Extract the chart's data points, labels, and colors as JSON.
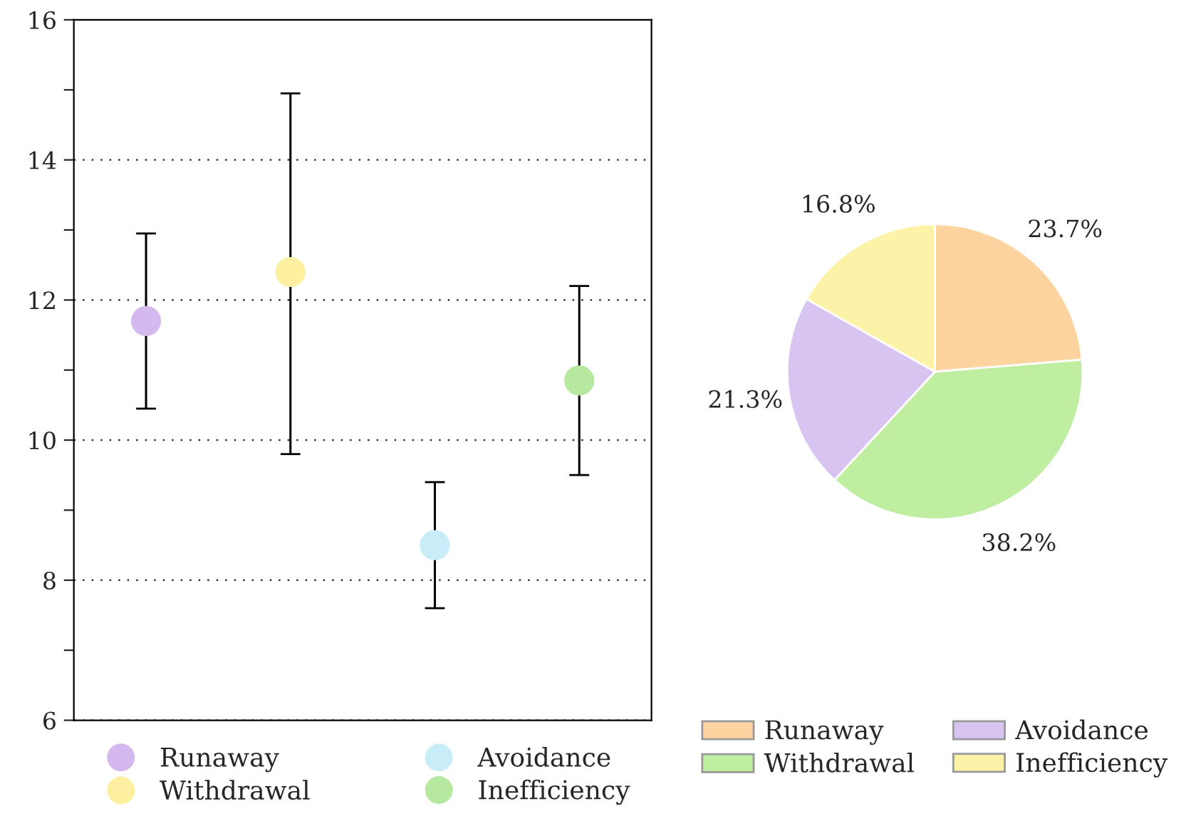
{
  "chart_data": [
    {
      "type": "scatter",
      "categories": [
        null,
        null,
        null,
        null
      ],
      "ylim": [
        6,
        16
      ],
      "yticks": [
        6,
        {
          "value": 7,
          "label": null
        },
        8,
        {
          "value": 9,
          "label": null
        },
        10,
        {
          "value": 11,
          "label": null
        },
        12,
        {
          "value": 13,
          "label": null
        },
        14,
        {
          "value": 15,
          "label": null
        },
        16
      ],
      "grid": "y",
      "legend": "bottom",
      "marker": "circle",
      "tick_labels": "y",
      "series": [
        {
          "name": "Runaway",
          "color": "#d5b8ee",
          "values": [
            11.7,
            null,
            null,
            null
          ],
          "errors": [
            [
              10.45,
              12.95
            ],
            null,
            null,
            null
          ]
        },
        {
          "name": "Withdrawal",
          "color": "#fdf0a0",
          "values": [
            null,
            12.4,
            null,
            null
          ],
          "errors": [
            null,
            [
              9.8,
              14.95
            ],
            null,
            null
          ]
        },
        {
          "name": "Avoidance",
          "color": "#c8ecf8",
          "values": [
            null,
            null,
            8.5,
            null
          ],
          "errors": [
            null,
            null,
            [
              7.6,
              9.4
            ],
            null
          ]
        },
        {
          "name": "Inefficiency",
          "color": "#b6e8a0",
          "values": [
            null,
            null,
            null,
            10.85
          ],
          "errors": [
            null,
            null,
            null,
            [
              9.5,
              12.2
            ]
          ]
        }
      ]
    },
    {
      "type": "pie",
      "categories": [
        "Runaway",
        "Withdrawal",
        "Avoidance",
        "Inefficiency"
      ],
      "values": [
        23.7,
        38.2,
        21.3,
        16.8
      ],
      "colors": [
        "#fdd3a0",
        "#c0eea0",
        "#d8c4f0",
        "#fdf3a8"
      ],
      "value_labels": [
        "23.7%",
        "38.2%",
        "21.3%",
        "16.8%"
      ],
      "legend": "bottom"
    }
  ]
}
